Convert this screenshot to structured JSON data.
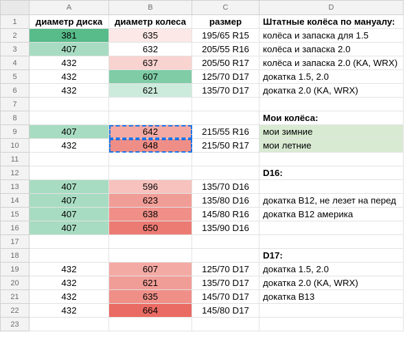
{
  "columns": [
    "A",
    "B",
    "C",
    "D"
  ],
  "rows": [
    {
      "n": "1",
      "a": "диаметр диска",
      "b": "диаметр колеса",
      "c": "размер",
      "d": "Штатные колёса по мануалу:",
      "bold": true,
      "a_bg": "#ffffff",
      "b_bg": "#ffffff",
      "d_bg": "#ffffff"
    },
    {
      "n": "2",
      "a": "381",
      "b": "635",
      "c": "195/65 R15",
      "d": "колёса и запаска для 1.5",
      "a_bg": "#57bb8a",
      "b_bg": "#fce8e6",
      "d_bg": "#ffffff"
    },
    {
      "n": "3",
      "a": "407",
      "b": "632",
      "c": "205/55 R16",
      "d": "колёса и запаска 2.0",
      "a_bg": "#a8dcc2",
      "b_bg": "#ffffff",
      "d_bg": "#ffffff"
    },
    {
      "n": "4",
      "a": "432",
      "b": "637",
      "c": "205/50 R17",
      "d": "колёса и запаска 2.0 (KA, WRX)",
      "a_bg": "#ffffff",
      "b_bg": "#f9d3d0",
      "d_bg": "#ffffff"
    },
    {
      "n": "5",
      "a": "432",
      "b": "607",
      "c": "125/70 D17",
      "d": "докатка 1.5, 2.0",
      "a_bg": "#ffffff",
      "b_bg": "#7fcca6",
      "d_bg": "#ffffff"
    },
    {
      "n": "6",
      "a": "432",
      "b": "621",
      "c": "135/70 D17",
      "d": "докатка 2.0 (KA, WRX)",
      "a_bg": "#ffffff",
      "b_bg": "#cdebdc",
      "d_bg": "#ffffff"
    },
    {
      "n": "7",
      "a": "",
      "b": "",
      "c": "",
      "d": "",
      "a_bg": "#ffffff",
      "b_bg": "#ffffff",
      "d_bg": "#ffffff"
    },
    {
      "n": "8",
      "a": "",
      "b": "",
      "c": "",
      "d": "Мои колёса:",
      "bold": true,
      "a_bg": "#ffffff",
      "b_bg": "#ffffff",
      "d_bg": "#ffffff"
    },
    {
      "n": "9",
      "a": "407",
      "b": "642",
      "c": "215/55 R16",
      "d": "мои зимние",
      "a_bg": "#a8dcc2",
      "b_bg": "#f4aaa4",
      "d_bg": "#d9ead3",
      "sel": true
    },
    {
      "n": "10",
      "a": "432",
      "b": "648",
      "c": "215/50 R17",
      "d": "мои летние",
      "a_bg": "#ffffff",
      "b_bg": "#ef8e87",
      "d_bg": "#d9ead3",
      "sel": true
    },
    {
      "n": "11",
      "a": "",
      "b": "",
      "c": "",
      "d": "",
      "a_bg": "#ffffff",
      "b_bg": "#ffffff",
      "d_bg": "#ffffff"
    },
    {
      "n": "12",
      "a": "",
      "b": "",
      "c": "",
      "d": "D16:",
      "bold": true,
      "a_bg": "#ffffff",
      "b_bg": "#ffffff",
      "d_bg": "#ffffff"
    },
    {
      "n": "13",
      "a": "407",
      "b": "596",
      "c": "135/70 D16",
      "d": "",
      "a_bg": "#a8dcc2",
      "b_bg": "#f7c2bd",
      "d_bg": "#ffffff"
    },
    {
      "n": "14",
      "a": "407",
      "b": "623",
      "c": "135/80 D16",
      "d": "докатка B12, не лезет на перед",
      "a_bg": "#a8dcc2",
      "b_bg": "#f19d97",
      "d_bg": "#ffffff"
    },
    {
      "n": "15",
      "a": "407",
      "b": "638",
      "c": "145/80 R16",
      "d": "докатка B12 америка",
      "a_bg": "#a8dcc2",
      "b_bg": "#ef8f88",
      "d_bg": "#ffffff"
    },
    {
      "n": "16",
      "a": "407",
      "b": "650",
      "c": "135/90 D16",
      "d": "",
      "a_bg": "#a8dcc2",
      "b_bg": "#ec7b73",
      "d_bg": "#ffffff"
    },
    {
      "n": "17",
      "a": "",
      "b": "",
      "c": "",
      "d": "",
      "a_bg": "#ffffff",
      "b_bg": "#ffffff",
      "d_bg": "#ffffff"
    },
    {
      "n": "18",
      "a": "",
      "b": "",
      "c": "",
      "d": "D17:",
      "bold": true,
      "a_bg": "#ffffff",
      "b_bg": "#ffffff",
      "d_bg": "#ffffff"
    },
    {
      "n": "19",
      "a": "432",
      "b": "607",
      "c": "125/70 D17",
      "d": "докатка 1.5, 2.0",
      "a_bg": "#ffffff",
      "b_bg": "#f4aaa4",
      "d_bg": "#ffffff"
    },
    {
      "n": "20",
      "a": "432",
      "b": "621",
      "c": "135/70 D17",
      "d": "докатка 2.0 (KA, WRX)",
      "a_bg": "#ffffff",
      "b_bg": "#f19d97",
      "d_bg": "#ffffff"
    },
    {
      "n": "21",
      "a": "432",
      "b": "635",
      "c": "145/70 D17",
      "d": "докатка B13",
      "a_bg": "#ffffff",
      "b_bg": "#ef8f88",
      "d_bg": "#ffffff"
    },
    {
      "n": "22",
      "a": "432",
      "b": "664",
      "c": "145/80 D17",
      "d": "",
      "a_bg": "#ffffff",
      "b_bg": "#ea6b63",
      "d_bg": "#ffffff"
    },
    {
      "n": "23",
      "a": "",
      "b": "",
      "c": "",
      "d": "",
      "a_bg": "#ffffff",
      "b_bg": "#ffffff",
      "d_bg": "#ffffff"
    }
  ]
}
